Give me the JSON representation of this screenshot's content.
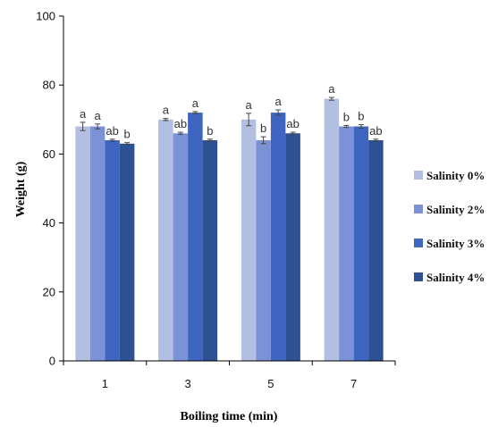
{
  "chart_data": {
    "type": "bar",
    "title": "",
    "xlabel": "Boiling time (min)",
    "ylabel": "Weight (g)",
    "categories": [
      "1",
      "3",
      "5",
      "7"
    ],
    "ylim": [
      0,
      100
    ],
    "yticks": [
      0,
      20,
      40,
      60,
      80,
      100
    ],
    "grid": false,
    "legend_position": "right",
    "series": [
      {
        "name": "Salinity 0%",
        "color": "#b3bfe0",
        "values": [
          68,
          70,
          70,
          76
        ],
        "errors": [
          1.2,
          0.3,
          1.8,
          0.4
        ],
        "labels": [
          "a",
          "a",
          "a",
          "a"
        ]
      },
      {
        "name": "Salinity 2%",
        "color": "#7b93d6",
        "values": [
          68,
          66,
          64,
          68
        ],
        "errors": [
          0.7,
          0.3,
          1.0,
          0.3
        ],
        "labels": [
          "a",
          "ab",
          "b",
          "b"
        ]
      },
      {
        "name": "Salinity 3%",
        "color": "#3e66c0",
        "values": [
          64,
          72,
          72,
          68
        ],
        "errors": [
          0.3,
          0.3,
          0.8,
          0.5
        ],
        "labels": [
          "ab",
          "a",
          "a",
          "b"
        ]
      },
      {
        "name": "Salinity 4%",
        "color": "#2d5193",
        "values": [
          63,
          64,
          66,
          64
        ],
        "errors": [
          0.3,
          0.3,
          0.3,
          0.3
        ],
        "labels": [
          "b",
          "b",
          "ab",
          "ab"
        ]
      }
    ]
  }
}
